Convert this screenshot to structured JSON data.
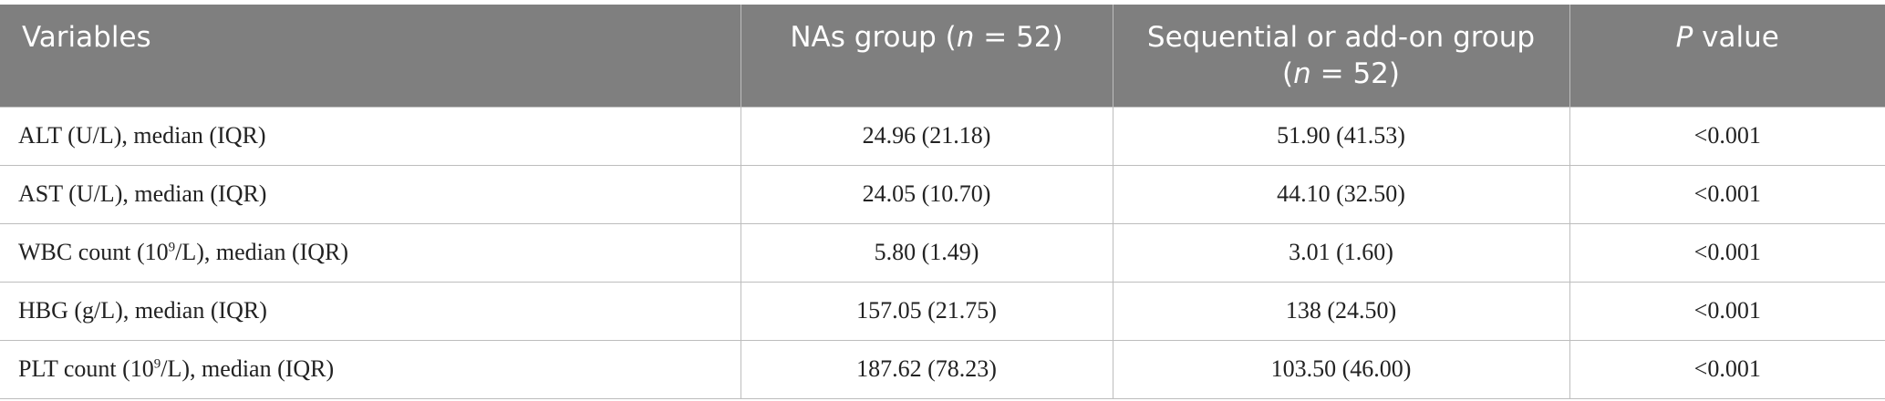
{
  "table": {
    "header": [
      [
        "Variables"
      ],
      [
        "NAs group (",
        {
          "i": "n"
        },
        " = 52)"
      ],
      [
        "Sequential or add-on group (",
        {
          "i": "n"
        },
        " = 52)"
      ],
      [
        {
          "i": "P"
        },
        " value"
      ]
    ],
    "rows": [
      [
        [
          "ALT (U/L), median (IQR)"
        ],
        [
          "24.96 (21.18)"
        ],
        [
          "51.90 (41.53)"
        ],
        [
          "<0.001"
        ]
      ],
      [
        [
          "AST (U/L), median (IQR)"
        ],
        [
          "24.05 (10.70)"
        ],
        [
          "44.10 (32.50)"
        ],
        [
          "<0.001"
        ]
      ],
      [
        [
          "WBC count (10",
          {
            "sup": "9"
          },
          "/L), median (IQR)"
        ],
        [
          "5.80 (1.49)"
        ],
        [
          "3.01 (1.60)"
        ],
        [
          "<0.001"
        ]
      ],
      [
        [
          "HBG (g/L), median (IQR)"
        ],
        [
          "157.05 (21.75)"
        ],
        [
          "138 (24.50)"
        ],
        [
          "<0.001"
        ]
      ],
      [
        [
          "PLT count (10",
          {
            "sup": "9"
          },
          "/L), median (IQR)"
        ],
        [
          "187.62 (78.23)"
        ],
        [
          "103.50 (46.00)"
        ],
        [
          "<0.001"
        ]
      ]
    ]
  }
}
